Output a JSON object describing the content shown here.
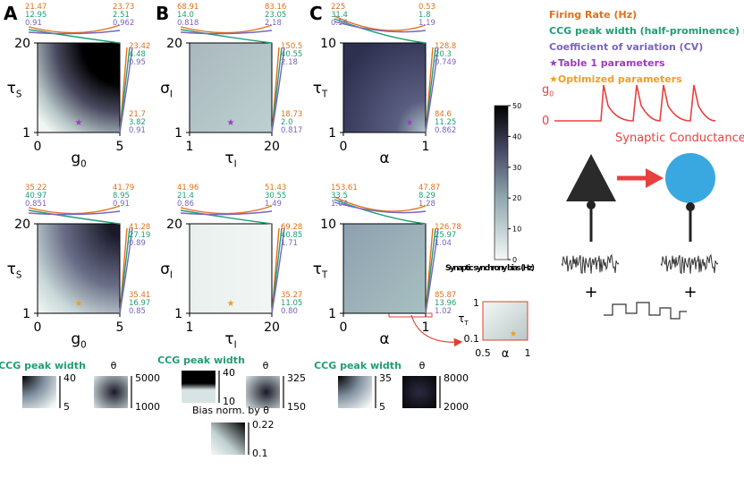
{
  "legend": [
    {
      "text": "Firing Rate (Hz)",
      "color": "#e0701c"
    },
    {
      "text": "CCG peak width (half-prominence) ms",
      "color": "#1f9e74"
    },
    {
      "text": "Coefficient of variation (CV)",
      "color": "#7a64c0"
    },
    {
      "marker": "★",
      "text": "Table 1 parameters",
      "color": "#9b3dbf"
    },
    {
      "marker": "★",
      "text": "Optimized parameters",
      "color": "#f0a020"
    }
  ],
  "panels": [
    {
      "letter": "A",
      "x_label": "g",
      "x_label_sub": "0",
      "y_label": "τ",
      "y_label_sub": "S",
      "xticks": [
        "0",
        "5"
      ],
      "yticks": [
        "20",
        "1"
      ],
      "top_left": [
        "21.47",
        "12.95",
        "0.91"
      ],
      "top_right": [
        "23.73",
        "2.51",
        "0.962"
      ],
      "right_top": [
        "23.42",
        "4.48",
        "0.95"
      ],
      "right_bottom": [
        "21.7",
        "3.82",
        "0.91"
      ],
      "star_color": "#9b3dbf"
    },
    {
      "letter": "B",
      "x_label": "τ",
      "x_label_sub": "I",
      "y_label": "σ",
      "y_label_sub": "I",
      "xticks": [
        "1",
        "20"
      ],
      "yticks": [
        "20",
        "1"
      ],
      "top_left": [
        "68.91",
        "14.0",
        "0.818"
      ],
      "top_right": [
        "83.16",
        "23.05",
        "2.18"
      ],
      "right_top": [
        "150.5",
        "40.55",
        "2.18"
      ],
      "right_bottom": [
        "18.73",
        "2.0",
        "0.817"
      ],
      "star_color": "#9b3dbf"
    },
    {
      "letter": "C",
      "x_label": "α",
      "y_label": "τ",
      "y_label_sub": "T",
      "xticks": [
        "0",
        "1"
      ],
      "yticks": [
        "10",
        "1"
      ],
      "top_left": [
        "225",
        "31.4",
        "0.56"
      ],
      "top_right": [
        "0.53",
        "1.8",
        "1.19"
      ],
      "right_top": [
        "128.8",
        "20.3",
        "0.749"
      ],
      "right_bottom": [
        "84.6",
        "11.25",
        "0.862"
      ],
      "star_color": "#9b3dbf"
    },
    {
      "x_label": "g",
      "x_label_sub": "0",
      "y_label": "τ",
      "y_label_sub": "S",
      "xticks": [
        "0",
        "5"
      ],
      "yticks": [
        "20",
        "1"
      ],
      "top_left": [
        "35.22",
        "40.97",
        "0.851"
      ],
      "top_right": [
        "41.79",
        "8.95",
        "0.91"
      ],
      "right_top": [
        "41.28",
        "27.19",
        "0.89"
      ],
      "right_bottom": [
        "35.41",
        "16.97",
        "0.85"
      ],
      "star_color": "#f0a020"
    },
    {
      "x_label": "τ",
      "x_label_sub": "I",
      "y_label": "σ",
      "y_label_sub": "I",
      "xticks": [
        "1",
        "20"
      ],
      "yticks": [
        "20",
        "1"
      ],
      "top_left": [
        "41.96",
        "21.4",
        "0.86"
      ],
      "top_right": [
        "51.43",
        "30.55",
        "1.49"
      ],
      "right_top": [
        "69.28",
        "40.85",
        "1.71"
      ],
      "right_bottom": [
        "35.27",
        "11.05",
        "0.80"
      ],
      "star_color": "#f0a020"
    },
    {
      "x_label": "α",
      "y_label": "τ",
      "y_label_sub": "T",
      "xticks": [
        "0",
        "1"
      ],
      "yticks": [
        "10",
        "1"
      ],
      "top_left": [
        "153.61",
        "33.5",
        "1.04"
      ],
      "top_right": [
        "47.87",
        "8.29",
        "1.28"
      ],
      "right_top": [
        "126.78",
        "25.97",
        "1.04"
      ],
      "right_bottom": [
        "85.87",
        "13.96",
        "1.02"
      ]
    }
  ],
  "colorbar": {
    "ticks": [
      "50",
      "40",
      "30",
      "20",
      "10",
      "0"
    ],
    "label": "Synaptic synchrony bias (Hz)"
  },
  "inset": {
    "y_label": "τ",
    "y_label_sub": "T",
    "yticks": [
      "1",
      "0.1"
    ],
    "xticks": [
      "0.5",
      "1"
    ],
    "x_label": "α",
    "star_color": "#f0a020"
  },
  "small_maps": [
    {
      "title": "CCG peak width",
      "ticks": [
        "40",
        "5"
      ]
    },
    {
      "title": "θ",
      "ticks": [
        "5000",
        "1000"
      ]
    },
    {
      "title": "CCG peak width",
      "ticks": [
        "40",
        "10"
      ]
    },
    {
      "title": "θ",
      "ticks": [
        "325",
        "150"
      ]
    },
    {
      "title": "CCG peak width",
      "ticks": [
        "35",
        "5"
      ]
    },
    {
      "title": "θ",
      "ticks": [
        "8000",
        "2000"
      ]
    },
    {
      "title": "Bias norm. by θ",
      "ticks": [
        "0.22",
        "0.1"
      ]
    }
  ],
  "schematic": {
    "g_label": "g",
    "g_label_sub": "0",
    "zero": "0",
    "conductance": "Synaptic Conductance",
    "plus_left": "+",
    "plus_right": "+"
  }
}
